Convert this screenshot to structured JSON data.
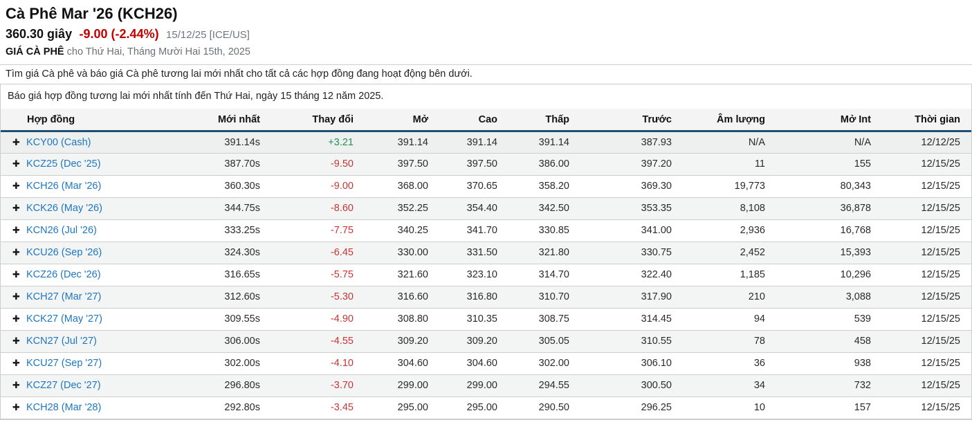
{
  "header": {
    "title": "Cà Phê Mar '26 (KCH26)",
    "last_price": "360.30 giây",
    "change": "-9.00 (-2.44%)",
    "date_exchange": "15/12/25 [ICE/US]",
    "subtitle_bold": "GIÁ CÀ PHÊ",
    "subtitle_rest": "cho Thứ Hai, Tháng Mười Hai 15th, 2025"
  },
  "notice": "Tìm giá Cà phê và báo giá Cà phê tương lai mới nhất cho tất cả các hợp đồng đang hoạt động bên dưới.",
  "quote_box": "Báo giá hợp đồng tương lai mới nhất tính đến Thứ Hai, ngày 15 tháng 12 năm 2025.",
  "table": {
    "expand_icon": "✚",
    "columns": [
      "Hợp đồng",
      "Mới nhất",
      "Thay đổi",
      "Mở",
      "Cao",
      "Thấp",
      "Trước",
      "Âm lượng",
      "Mở Int",
      "Thời gian"
    ],
    "rows": [
      {
        "contract": "KCY00 (Cash)",
        "last": "391.14s",
        "change": "+3.21",
        "dir": "up",
        "open": "391.14",
        "high": "391.14",
        "low": "391.14",
        "prev": "387.93",
        "volume": "N/A",
        "open_int": "N/A",
        "time": "12/12/25"
      },
      {
        "contract": "KCZ25 (Dec '25)",
        "last": "387.70s",
        "change": "-9.50",
        "dir": "down",
        "open": "397.50",
        "high": "397.50",
        "low": "386.00",
        "prev": "397.20",
        "volume": "11",
        "open_int": "155",
        "time": "12/15/25"
      },
      {
        "contract": "KCH26 (Mar '26)",
        "last": "360.30s",
        "change": "-9.00",
        "dir": "down",
        "open": "368.00",
        "high": "370.65",
        "low": "358.20",
        "prev": "369.30",
        "volume": "19,773",
        "open_int": "80,343",
        "time": "12/15/25"
      },
      {
        "contract": "KCK26 (May '26)",
        "last": "344.75s",
        "change": "-8.60",
        "dir": "down",
        "open": "352.25",
        "high": "354.40",
        "low": "342.50",
        "prev": "353.35",
        "volume": "8,108",
        "open_int": "36,878",
        "time": "12/15/25"
      },
      {
        "contract": "KCN26 (Jul '26)",
        "last": "333.25s",
        "change": "-7.75",
        "dir": "down",
        "open": "340.25",
        "high": "341.70",
        "low": "330.85",
        "prev": "341.00",
        "volume": "2,936",
        "open_int": "16,768",
        "time": "12/15/25"
      },
      {
        "contract": "KCU26 (Sep '26)",
        "last": "324.30s",
        "change": "-6.45",
        "dir": "down",
        "open": "330.00",
        "high": "331.50",
        "low": "321.80",
        "prev": "330.75",
        "volume": "2,452",
        "open_int": "15,393",
        "time": "12/15/25"
      },
      {
        "contract": "KCZ26 (Dec '26)",
        "last": "316.65s",
        "change": "-5.75",
        "dir": "down",
        "open": "321.60",
        "high": "323.10",
        "low": "314.70",
        "prev": "322.40",
        "volume": "1,185",
        "open_int": "10,296",
        "time": "12/15/25"
      },
      {
        "contract": "KCH27 (Mar '27)",
        "last": "312.60s",
        "change": "-5.30",
        "dir": "down",
        "open": "316.60",
        "high": "316.80",
        "low": "310.70",
        "prev": "317.90",
        "volume": "210",
        "open_int": "3,088",
        "time": "12/15/25"
      },
      {
        "contract": "KCK27 (May '27)",
        "last": "309.55s",
        "change": "-4.90",
        "dir": "down",
        "open": "308.80",
        "high": "310.35",
        "low": "308.75",
        "prev": "314.45",
        "volume": "94",
        "open_int": "539",
        "time": "12/15/25"
      },
      {
        "contract": "KCN27 (Jul '27)",
        "last": "306.00s",
        "change": "-4.55",
        "dir": "down",
        "open": "309.20",
        "high": "309.20",
        "low": "305.05",
        "prev": "310.55",
        "volume": "78",
        "open_int": "458",
        "time": "12/15/25"
      },
      {
        "contract": "KCU27 (Sep '27)",
        "last": "302.00s",
        "change": "-4.10",
        "dir": "down",
        "open": "304.60",
        "high": "304.60",
        "low": "302.00",
        "prev": "306.10",
        "volume": "36",
        "open_int": "938",
        "time": "12/15/25"
      },
      {
        "contract": "KCZ27 (Dec '27)",
        "last": "296.80s",
        "change": "-3.70",
        "dir": "down",
        "open": "299.00",
        "high": "299.00",
        "low": "294.55",
        "prev": "300.50",
        "volume": "34",
        "open_int": "732",
        "time": "12/15/25"
      },
      {
        "contract": "KCH28 (Mar '28)",
        "last": "292.80s",
        "change": "-3.45",
        "dir": "down",
        "open": "295.00",
        "high": "295.00",
        "low": "290.50",
        "prev": "296.25",
        "volume": "10",
        "open_int": "157",
        "time": "12/15/25"
      }
    ]
  },
  "colors": {
    "link": "#1d76c2",
    "positive": "#1f9155",
    "negative": "#c73535",
    "title_change_red": "#c20000",
    "header_underline_navy": "#1e4f72",
    "row_stripe_gray": "#f3f4f4",
    "cash_row_gray": "#eeefef",
    "table_border": "#cdcdcd"
  }
}
